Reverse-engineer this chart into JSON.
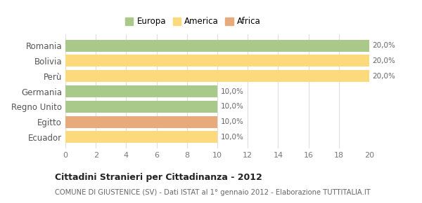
{
  "categories": [
    "Romania",
    "Bolivia",
    "Perù",
    "Germania",
    "Regno Unito",
    "Egitto",
    "Ecuador"
  ],
  "values": [
    20,
    20,
    20,
    10,
    10,
    10,
    10
  ],
  "colors": [
    "#a8c98a",
    "#fcd97a",
    "#fcd97a",
    "#a8c98a",
    "#a8c98a",
    "#e8aa7a",
    "#fcd97a"
  ],
  "labels": [
    "20,0%",
    "20,0%",
    "20,0%",
    "10,0%",
    "10,0%",
    "10,0%",
    "10,0%"
  ],
  "xlim": [
    0,
    20
  ],
  "xticks": [
    0,
    2,
    4,
    6,
    8,
    10,
    12,
    14,
    16,
    18,
    20
  ],
  "legend": [
    {
      "label": "Europa",
      "color": "#a8c98a"
    },
    {
      "label": "America",
      "color": "#fcd97a"
    },
    {
      "label": "Africa",
      "color": "#e8aa7a"
    }
  ],
  "title": "Cittadini Stranieri per Cittadinanza - 2012",
  "subtitle": "COMUNE DI GIUSTENICE (SV) - Dati ISTAT al 1° gennaio 2012 - Elaborazione TUTTITALIA.IT",
  "bg_color": "#ffffff",
  "grid_color": "#dddddd"
}
